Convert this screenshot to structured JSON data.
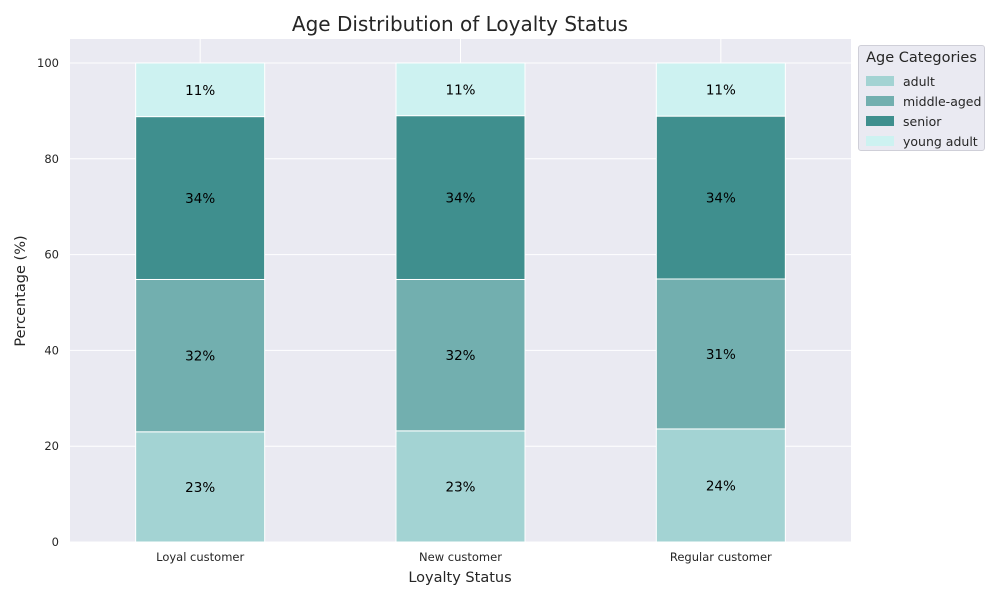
{
  "chart_data": {
    "type": "bar",
    "stacked": true,
    "title": "Age Distribution of Loyalty Status",
    "xlabel": "Loyalty Status",
    "ylabel": "Percentage (%)",
    "ylim": [
      0,
      105
    ],
    "yticks": [
      0,
      20,
      40,
      60,
      80,
      100
    ],
    "grid": true,
    "legend_title": "Age Categories",
    "legend_position": "upper right outside",
    "categories": [
      "Loyal customer",
      "New customer",
      "Regular customer"
    ],
    "series": [
      {
        "name": "adult",
        "color": "#a3d3d3",
        "values": [
          23.0,
          23.2,
          23.6
        ],
        "labels": [
          "23%",
          "23%",
          "24%"
        ]
      },
      {
        "name": "middle-aged",
        "color": "#72afaf",
        "values": [
          31.8,
          31.6,
          31.3
        ],
        "labels": [
          "32%",
          "32%",
          "31%"
        ]
      },
      {
        "name": "senior",
        "color": "#3f8f8e",
        "values": [
          34.0,
          34.2,
          34.0
        ],
        "labels": [
          "34%",
          "34%",
          "34%"
        ]
      },
      {
        "name": "young adult",
        "color": "#cdf2f1",
        "values": [
          11.2,
          11.0,
          11.1
        ],
        "labels": [
          "11%",
          "11%",
          "11%"
        ]
      }
    ]
  }
}
